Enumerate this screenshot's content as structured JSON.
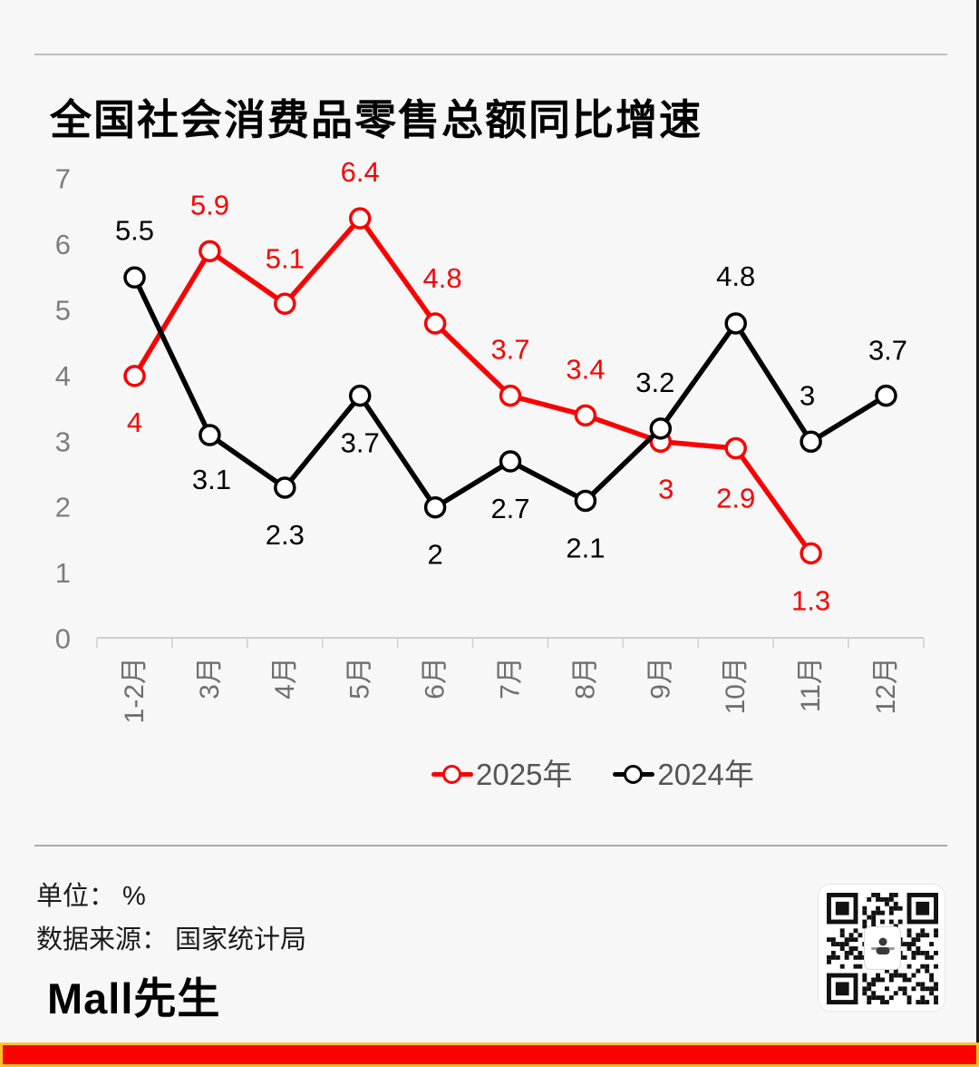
{
  "page": {
    "background": "#f7f7f7",
    "divider_color": "#b5b5b5",
    "bottom_bar_red": "#fb0100",
    "bottom_bar_gold": "#ffc12b",
    "right_edge_color": "#1b1b1b"
  },
  "chart_data": {
    "type": "line",
    "title": "全国社会消费品零售总额同比增速",
    "categories": [
      "1-2月",
      "3月",
      "4月",
      "5月",
      "6月",
      "7月",
      "8月",
      "9月",
      "10月",
      "11月",
      "12月"
    ],
    "series": [
      {
        "name": "2025年",
        "color": "#fb0000",
        "values": [
          4,
          5.9,
          5.1,
          6.4,
          4.8,
          3.7,
          3.4,
          3,
          2.9,
          1.3,
          null
        ],
        "label_offsets": [
          [
            0,
            51
          ],
          [
            0,
            -51
          ],
          [
            0,
            -50
          ],
          [
            0,
            -51
          ],
          [
            8,
            -50
          ],
          [
            0,
            -51
          ],
          [
            0,
            -51
          ],
          [
            6,
            52
          ],
          [
            0,
            55
          ],
          [
            0,
            52
          ],
          [
            0,
            0
          ]
        ]
      },
      {
        "name": "2024年",
        "color": "#000000",
        "values": [
          5.5,
          3.1,
          2.3,
          3.7,
          2,
          2.7,
          2.1,
          3.2,
          4.8,
          3,
          3.7
        ],
        "label_offsets": [
          [
            0,
            -52
          ],
          [
            2,
            49
          ],
          [
            0,
            52
          ],
          [
            0,
            52
          ],
          [
            0,
            52
          ],
          [
            0,
            52
          ],
          [
            0,
            52
          ],
          [
            -6,
            -51
          ],
          [
            0,
            -52
          ],
          [
            -4,
            -51
          ],
          [
            2,
            -50
          ]
        ]
      }
    ],
    "ylim": [
      0,
      7
    ],
    "yticks": [
      0,
      1,
      2,
      3,
      4,
      5,
      6,
      7
    ],
    "grid": false,
    "marker": "circle",
    "legend_position": "bottom-center",
    "xlabel": "",
    "ylabel": ""
  },
  "legend": {
    "items": [
      {
        "label": "2025年",
        "color": "#fb0000"
      },
      {
        "label": "2024年",
        "color": "#000000"
      }
    ]
  },
  "footer": {
    "unit_label": "单位： %",
    "source_label": "数据来源： 国家统计局",
    "logo_text": "Mall先生",
    "qr_icon": "wechat-qr-code"
  }
}
